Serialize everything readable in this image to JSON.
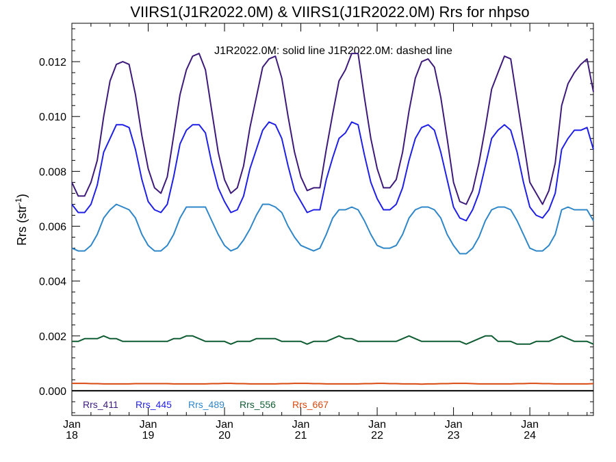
{
  "chart_data": {
    "type": "line",
    "title": "VIIRS1(J1R2022.0M) & VIIRS1(J1R2022.0M)  Rrs for nhpso",
    "annotation": "J1R2022.0M: solid line   J1R2022.0M: dashed line",
    "ylabel": "Rrs (str",
    "ylabel_sup": "-1",
    "ylabel_close": ")",
    "xlabel": "",
    "xlim": [
      2018.0,
      2024.833
    ],
    "ylim": [
      -0.0009,
      0.0134
    ],
    "y_ticks": [
      0.0,
      0.002,
      0.004,
      0.006,
      0.008,
      0.01,
      0.012
    ],
    "y_tick_labels": [
      "0.000",
      "0.002",
      "0.004",
      "0.006",
      "0.008",
      "0.010",
      "0.012"
    ],
    "x_ticks": [
      2018,
      2019,
      2020,
      2021,
      2022,
      2023,
      2024
    ],
    "x_tick_labels_top": [
      "Jan",
      "Jan",
      "Jan",
      "Jan",
      "Jan",
      "Jan",
      "Jan"
    ],
    "x_tick_labels_bottom": [
      "18",
      "19",
      "20",
      "21",
      "22",
      "23",
      "24"
    ],
    "zero_line": 0.0,
    "grid": false,
    "legend_placement": "bottom-left",
    "x_months": [
      2018.0,
      2018.083,
      2018.167,
      2018.25,
      2018.333,
      2018.417,
      2018.5,
      2018.583,
      2018.667,
      2018.75,
      2018.833,
      2018.917,
      2019.0,
      2019.083,
      2019.167,
      2019.25,
      2019.333,
      2019.417,
      2019.5,
      2019.583,
      2019.667,
      2019.75,
      2019.833,
      2019.917,
      2020.0,
      2020.083,
      2020.167,
      2020.25,
      2020.333,
      2020.417,
      2020.5,
      2020.583,
      2020.667,
      2020.75,
      2020.833,
      2020.917,
      2021.0,
      2021.083,
      2021.167,
      2021.25,
      2021.333,
      2021.417,
      2021.5,
      2021.583,
      2021.667,
      2021.75,
      2021.833,
      2021.917,
      2022.0,
      2022.083,
      2022.167,
      2022.25,
      2022.333,
      2022.417,
      2022.5,
      2022.583,
      2022.667,
      2022.75,
      2022.833,
      2022.917,
      2023.0,
      2023.083,
      2023.167,
      2023.25,
      2023.333,
      2023.417,
      2023.5,
      2023.583,
      2023.667,
      2023.75,
      2023.833,
      2023.917,
      2024.0,
      2024.083,
      2024.167,
      2024.25,
      2024.333,
      2024.417,
      2024.5,
      2024.583,
      2024.667,
      2024.75,
      2024.833
    ],
    "series": [
      {
        "name": "Rrs_411",
        "color": "#3d1a7a",
        "style": "solid",
        "values": [
          0.0076,
          0.0071,
          0.0071,
          0.0076,
          0.0084,
          0.01,
          0.0113,
          0.0119,
          0.012,
          0.0119,
          0.0108,
          0.0093,
          0.0081,
          0.0074,
          0.0072,
          0.0078,
          0.0093,
          0.0108,
          0.0117,
          0.0122,
          0.0123,
          0.0117,
          0.0102,
          0.0087,
          0.0077,
          0.0072,
          0.0074,
          0.0082,
          0.0096,
          0.0107,
          0.0118,
          0.0121,
          0.0122,
          0.0114,
          0.01,
          0.0087,
          0.0078,
          0.0073,
          0.0074,
          0.0074,
          0.0088,
          0.0101,
          0.0113,
          0.0117,
          0.0123,
          0.0123,
          0.0107,
          0.0092,
          0.0081,
          0.0074,
          0.0074,
          0.0077,
          0.0087,
          0.0102,
          0.0114,
          0.012,
          0.0121,
          0.0118,
          0.0107,
          0.0092,
          0.0076,
          0.0069,
          0.0068,
          0.0073,
          0.0083,
          0.0096,
          0.011,
          0.0116,
          0.0122,
          0.0121,
          0.0106,
          0.0091,
          0.0076,
          0.0072,
          0.0068,
          0.0073,
          0.0083,
          0.0104,
          0.0112,
          0.0116,
          0.0119,
          0.0121,
          0.0109
        ]
      },
      {
        "name": "Rrs_445",
        "color": "#1f1fe6",
        "style": "solid",
        "values": [
          0.0068,
          0.0065,
          0.0065,
          0.0068,
          0.0075,
          0.0087,
          0.0092,
          0.0097,
          0.0097,
          0.0096,
          0.0088,
          0.0077,
          0.0069,
          0.0066,
          0.0065,
          0.0068,
          0.0078,
          0.009,
          0.0095,
          0.0097,
          0.0097,
          0.0094,
          0.0083,
          0.0074,
          0.0069,
          0.0065,
          0.0066,
          0.0071,
          0.0081,
          0.0088,
          0.0095,
          0.0098,
          0.0097,
          0.0092,
          0.0082,
          0.0073,
          0.0069,
          0.0065,
          0.0066,
          0.0066,
          0.0077,
          0.0085,
          0.0092,
          0.0094,
          0.0098,
          0.0097,
          0.0086,
          0.0076,
          0.007,
          0.0066,
          0.0066,
          0.0068,
          0.0074,
          0.0084,
          0.0092,
          0.0096,
          0.0097,
          0.0095,
          0.0087,
          0.0077,
          0.0067,
          0.0063,
          0.0062,
          0.0066,
          0.0072,
          0.0082,
          0.0092,
          0.0095,
          0.0097,
          0.0095,
          0.0087,
          0.0076,
          0.0067,
          0.0064,
          0.0063,
          0.0066,
          0.0072,
          0.0088,
          0.0092,
          0.0095,
          0.0095,
          0.0096,
          0.0088
        ]
      },
      {
        "name": "Rrs_489",
        "color": "#2e86c8",
        "style": "solid",
        "values": [
          0.0052,
          0.0051,
          0.0051,
          0.0053,
          0.0057,
          0.0063,
          0.0066,
          0.0068,
          0.0067,
          0.0066,
          0.0063,
          0.0057,
          0.0053,
          0.0051,
          0.0051,
          0.0053,
          0.0057,
          0.0063,
          0.0067,
          0.0067,
          0.0067,
          0.0067,
          0.0062,
          0.0057,
          0.0053,
          0.0051,
          0.0052,
          0.0055,
          0.0059,
          0.0064,
          0.0068,
          0.0068,
          0.0067,
          0.0065,
          0.006,
          0.0056,
          0.0053,
          0.0052,
          0.0051,
          0.0052,
          0.0057,
          0.0063,
          0.0066,
          0.0066,
          0.0067,
          0.0066,
          0.0062,
          0.0057,
          0.0053,
          0.0052,
          0.0052,
          0.0053,
          0.0057,
          0.0063,
          0.0066,
          0.0067,
          0.0067,
          0.0066,
          0.0063,
          0.0057,
          0.0053,
          0.005,
          0.005,
          0.0052,
          0.0056,
          0.0062,
          0.0066,
          0.0067,
          0.0067,
          0.0066,
          0.0062,
          0.0057,
          0.0052,
          0.0051,
          0.0051,
          0.0053,
          0.0057,
          0.0066,
          0.0067,
          0.0066,
          0.0066,
          0.0066,
          0.0062
        ]
      },
      {
        "name": "Rrs_556",
        "color": "#0f5c32",
        "style": "solid",
        "values": [
          0.0018,
          0.0018,
          0.0019,
          0.0019,
          0.0019,
          0.002,
          0.0019,
          0.0019,
          0.0018,
          0.0018,
          0.0018,
          0.0018,
          0.0018,
          0.0018,
          0.0018,
          0.0018,
          0.0019,
          0.0019,
          0.002,
          0.002,
          0.0019,
          0.0018,
          0.0018,
          0.0018,
          0.0018,
          0.0017,
          0.0018,
          0.0018,
          0.0018,
          0.0019,
          0.0019,
          0.0019,
          0.0019,
          0.0018,
          0.0018,
          0.0018,
          0.0018,
          0.0017,
          0.0018,
          0.0018,
          0.0018,
          0.0019,
          0.002,
          0.0019,
          0.0019,
          0.0018,
          0.0018,
          0.0018,
          0.0018,
          0.0018,
          0.0018,
          0.0018,
          0.0019,
          0.002,
          0.0019,
          0.0018,
          0.0018,
          0.0018,
          0.0018,
          0.0018,
          0.0018,
          0.0018,
          0.0017,
          0.0018,
          0.0019,
          0.002,
          0.002,
          0.0018,
          0.0018,
          0.0018,
          0.0017,
          0.0017,
          0.0017,
          0.0018,
          0.0018,
          0.0018,
          0.0019,
          0.002,
          0.0019,
          0.0018,
          0.0018,
          0.0018,
          0.0017
        ]
      },
      {
        "name": "Rrs_667",
        "color": "#d9480f",
        "style": "solid",
        "values": [
          0.00027,
          0.00027,
          0.00027,
          0.00026,
          0.00026,
          0.00025,
          0.00025,
          0.00025,
          0.00025,
          0.00025,
          0.00026,
          0.00026,
          0.00026,
          0.00026,
          0.00026,
          0.00026,
          0.00025,
          0.00025,
          0.00025,
          0.00025,
          0.00025,
          0.00025,
          0.00026,
          0.00026,
          0.00027,
          0.00027,
          0.00026,
          0.00026,
          0.00025,
          0.00025,
          0.00025,
          0.00025,
          0.00025,
          0.00026,
          0.00026,
          0.00027,
          0.00027,
          0.00027,
          0.00026,
          0.00026,
          0.00025,
          0.00025,
          0.00025,
          0.00025,
          0.00025,
          0.00025,
          0.00026,
          0.00026,
          0.00027,
          0.00027,
          0.00026,
          0.00026,
          0.00025,
          0.00025,
          0.00025,
          0.00024,
          0.00025,
          0.00025,
          0.00026,
          0.00026,
          0.00027,
          0.00027,
          0.00027,
          0.00026,
          0.00025,
          0.00025,
          0.00025,
          0.00025,
          0.00025,
          0.00025,
          0.00026,
          0.00026,
          0.00027,
          0.00027,
          0.00026,
          0.00026,
          0.00025,
          0.00025,
          0.00025,
          0.00025,
          0.00025,
          0.00025,
          0.00026
        ]
      }
    ]
  }
}
